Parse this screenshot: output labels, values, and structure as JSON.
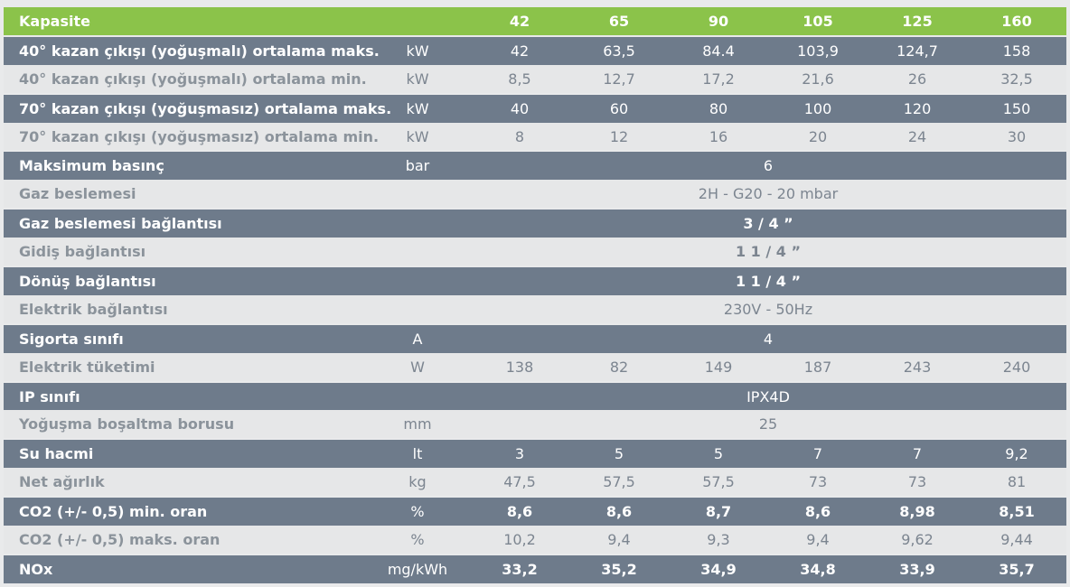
{
  "header": {
    "label": "Kapasite",
    "columns": [
      "42",
      "65",
      "90",
      "105",
      "125",
      "160"
    ]
  },
  "rows": [
    {
      "label": "40° kazan çıkışı (yoğuşmalı) ortalama maks.",
      "unit": "kW",
      "values": [
        "42",
        "63,5",
        "84.4",
        "103,9",
        "124,7",
        "158"
      ]
    },
    {
      "label": "40° kazan çıkışı (yoğuşmalı) ortalama min.",
      "unit": "kW",
      "values": [
        "8,5",
        "12,7",
        "17,2",
        "21,6",
        "26",
        "32,5"
      ]
    },
    {
      "label": "70° kazan çıkışı (yoğuşmasız) ortalama maks.",
      "unit": "kW",
      "values": [
        "40",
        "60",
        "80",
        "100",
        "120",
        "150"
      ]
    },
    {
      "label": "70° kazan çıkışı (yoğuşmasız) ortalama min.",
      "unit": "kW",
      "values": [
        "8",
        "12",
        "16",
        "20",
        "24",
        "30"
      ]
    },
    {
      "label": "Maksimum basınç",
      "unit": "bar",
      "span": "6"
    },
    {
      "label": "Gaz beslemesi",
      "unit": "",
      "span": "2H - G20 - 20 mbar"
    },
    {
      "label": "Gaz beslemesi bağlantısı",
      "unit": "",
      "span": "3 / 4 ”"
    },
    {
      "label": "Gidiş bağlantısı",
      "unit": "",
      "span": "1 1 / 4 ”"
    },
    {
      "label": "Dönüş bağlantısı",
      "unit": "",
      "span": "1 1 / 4 ”"
    },
    {
      "label": "Elektrik bağlantısı",
      "unit": "",
      "span": "230V - 50Hz"
    },
    {
      "label": "Sigorta sınıfı",
      "unit": "A",
      "span": "4"
    },
    {
      "label": "Elektrik tüketimi",
      "unit": "W",
      "values": [
        "138",
        "82",
        "149",
        "187",
        "243",
        "240"
      ]
    },
    {
      "label": "IP sınıfı",
      "unit": "",
      "span": "IPX4D"
    },
    {
      "label": "Yoğuşma boşaltma borusu",
      "unit": "mm",
      "span": "25"
    },
    {
      "label": "Su hacmi",
      "unit": "lt",
      "values": [
        "3",
        "5",
        "5",
        "7",
        "7",
        "9,2"
      ]
    },
    {
      "label": "Net ağırlık",
      "unit": "kg",
      "values": [
        "47,5",
        "57,5",
        "57,5",
        "73",
        "73",
        "81"
      ]
    },
    {
      "label": "CO2 (+/- 0,5) min. oran",
      "unit": "%",
      "values": [
        "8,6",
        "8,6",
        "8,7",
        "8,6",
        "8,98",
        "8,51"
      ]
    },
    {
      "label": "CO2 (+/- 0,5) maks. oran",
      "unit": "%",
      "values": [
        "10,2",
        "9,4",
        "9,3",
        "9,4",
        "9,62",
        "9,44"
      ]
    },
    {
      "label": "NOx",
      "unit": "mg/kWh",
      "values": [
        "33,2",
        "35,2",
        "34,9",
        "34,8",
        "33,9",
        "35,7"
      ]
    }
  ],
  "colors": {
    "header_green": "#8bc34a",
    "dark_row": "#6e7b8b",
    "light_row": "#e6e7e8",
    "light_text": "#7c8590"
  }
}
